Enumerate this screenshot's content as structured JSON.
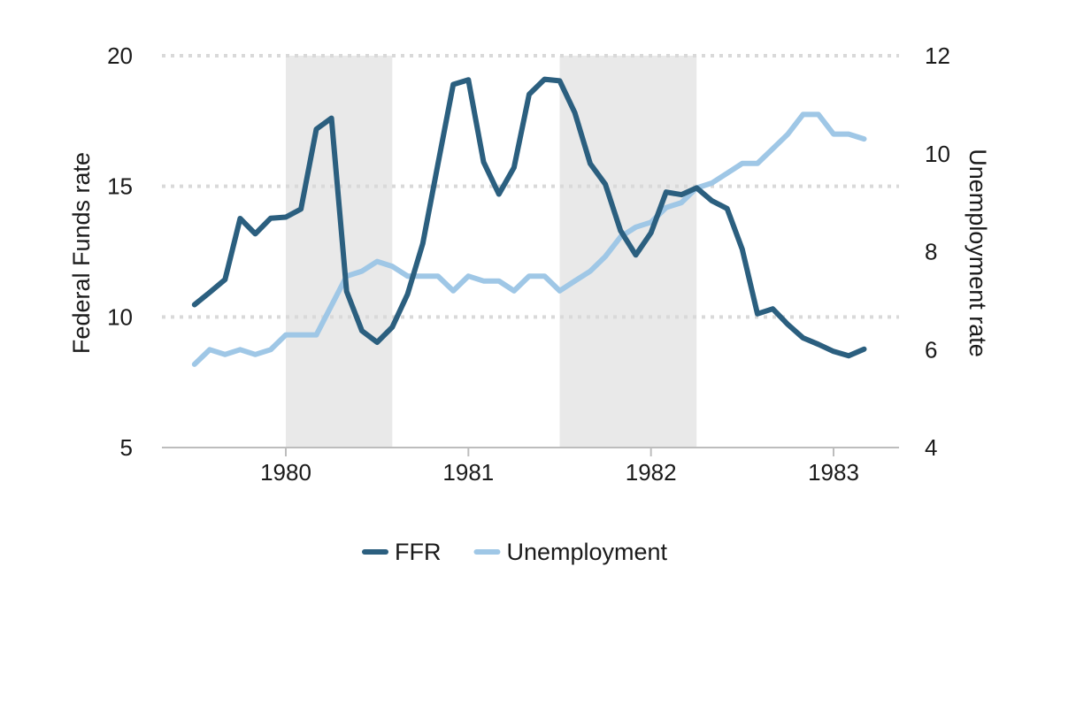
{
  "chart_data": {
    "type": "line",
    "x_axis": {
      "tick_labels": [
        "1980",
        "1981",
        "1982",
        "1983"
      ],
      "tick_values": [
        1980,
        1981,
        1982,
        1983
      ],
      "range": [
        1979.3,
        1983.35
      ]
    },
    "left_axis": {
      "label": "Federal Funds rate",
      "range": [
        5,
        20
      ],
      "ticks": [
        5,
        10,
        15,
        20
      ]
    },
    "right_axis": {
      "label": "Unemployment rate",
      "range": [
        4,
        12
      ],
      "ticks": [
        4,
        6,
        8,
        10,
        12
      ]
    },
    "grid": true,
    "legend_position": "bottom-center",
    "recessions": [
      {
        "start": 1980.0,
        "end": 1980.583
      },
      {
        "start": 1981.5,
        "end": 1982.25
      }
    ],
    "series": [
      {
        "name": "FFR",
        "axis": "left",
        "color": "#2b5f7f",
        "x": [
          1979.5,
          1979.583,
          1979.667,
          1979.75,
          1979.833,
          1979.917,
          1980.0,
          1980.083,
          1980.167,
          1980.25,
          1980.333,
          1980.417,
          1980.5,
          1980.583,
          1980.667,
          1980.75,
          1980.833,
          1980.917,
          1981.0,
          1981.083,
          1981.167,
          1981.25,
          1981.333,
          1981.417,
          1981.5,
          1981.583,
          1981.667,
          1981.75,
          1981.833,
          1981.917,
          1982.0,
          1982.083,
          1982.167,
          1982.25,
          1982.333,
          1982.417,
          1982.5,
          1982.583,
          1982.667,
          1982.75,
          1982.833,
          1982.917,
          1983.0,
          1983.083,
          1983.167
        ],
        "values": [
          10.47,
          10.94,
          11.43,
          13.77,
          13.18,
          13.78,
          13.82,
          14.13,
          17.19,
          17.61,
          10.98,
          9.47,
          9.03,
          9.61,
          10.87,
          12.81,
          15.85,
          18.9,
          19.08,
          15.93,
          14.7,
          15.72,
          18.52,
          19.1,
          19.04,
          17.82,
          15.87,
          15.08,
          13.31,
          12.37,
          13.22,
          14.78,
          14.68,
          14.94,
          14.45,
          14.15,
          12.59,
          10.12,
          10.31,
          9.71,
          9.2,
          8.95,
          8.68,
          8.51,
          8.77
        ]
      },
      {
        "name": "Unemployment",
        "axis": "right",
        "color": "#9fc7e6",
        "x": [
          1979.5,
          1979.583,
          1979.667,
          1979.75,
          1979.833,
          1979.917,
          1980.0,
          1980.083,
          1980.167,
          1980.25,
          1980.333,
          1980.417,
          1980.5,
          1980.583,
          1980.667,
          1980.75,
          1980.833,
          1980.917,
          1981.0,
          1981.083,
          1981.167,
          1981.25,
          1981.333,
          1981.417,
          1981.5,
          1981.583,
          1981.667,
          1981.75,
          1981.833,
          1981.917,
          1982.0,
          1982.083,
          1982.167,
          1982.25,
          1982.333,
          1982.417,
          1982.5,
          1982.583,
          1982.667,
          1982.75,
          1982.833,
          1982.917,
          1983.0,
          1983.083,
          1983.167
        ],
        "values": [
          5.7,
          6.0,
          5.9,
          6.0,
          5.9,
          6.0,
          6.3,
          6.3,
          6.3,
          6.9,
          7.5,
          7.6,
          7.8,
          7.7,
          7.5,
          7.5,
          7.5,
          7.2,
          7.5,
          7.4,
          7.4,
          7.2,
          7.5,
          7.5,
          7.2,
          7.4,
          7.6,
          7.9,
          8.3,
          8.5,
          8.6,
          8.9,
          9.0,
          9.3,
          9.4,
          9.6,
          9.8,
          9.8,
          10.1,
          10.4,
          10.8,
          10.8,
          10.4,
          10.4,
          10.3
        ]
      }
    ]
  }
}
